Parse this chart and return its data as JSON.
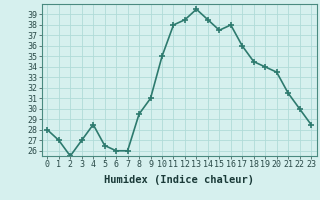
{
  "x": [
    0,
    1,
    2,
    3,
    4,
    5,
    6,
    7,
    8,
    9,
    10,
    11,
    12,
    13,
    14,
    15,
    16,
    17,
    18,
    19,
    20,
    21,
    22,
    23
  ],
  "y": [
    28,
    27,
    25.5,
    27,
    28.5,
    26.5,
    26,
    26,
    29.5,
    31,
    35,
    38,
    38.5,
    39.5,
    38.5,
    37.5,
    38,
    36,
    34.5,
    34,
    33.5,
    31.5,
    30,
    28.5
  ],
  "line_color": "#2d7a6e",
  "marker": "+",
  "marker_size": 4,
  "linewidth": 1.2,
  "xlabel": "Humidex (Indice chaleur)",
  "ylim": [
    25.5,
    40
  ],
  "xlim": [
    -0.5,
    23.5
  ],
  "yticks": [
    26,
    27,
    28,
    29,
    30,
    31,
    32,
    33,
    34,
    35,
    36,
    37,
    38,
    39
  ],
  "xticks": [
    0,
    1,
    2,
    3,
    4,
    5,
    6,
    7,
    8,
    9,
    10,
    11,
    12,
    13,
    14,
    15,
    16,
    17,
    18,
    19,
    20,
    21,
    22,
    23
  ],
  "background_color": "#d6f0ee",
  "grid_color": "#b0dbd8",
  "tick_fontsize": 6,
  "xlabel_fontsize": 7.5
}
